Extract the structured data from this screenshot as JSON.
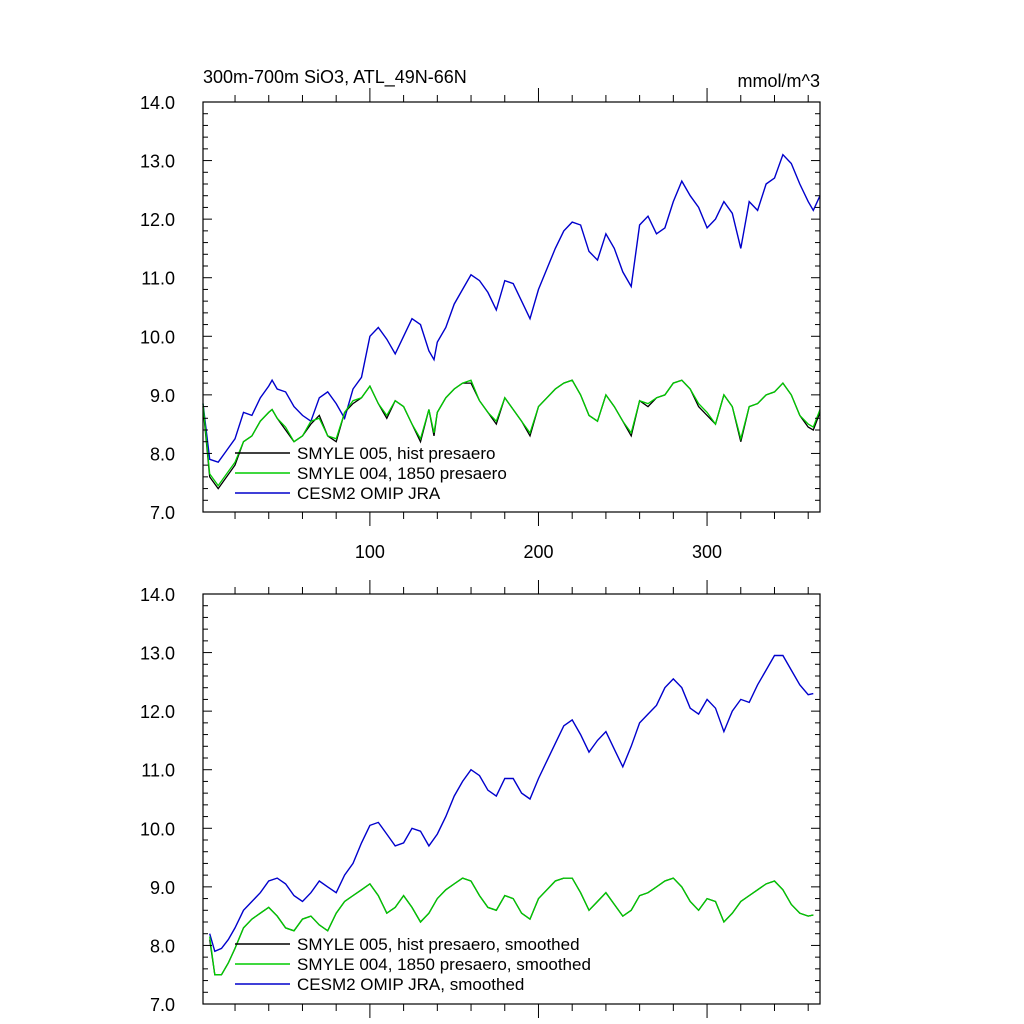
{
  "figure": {
    "title_left": "300m-700m SiO3, ATL_49N-66N",
    "title_right": "mmol/m^3"
  },
  "colors": {
    "smyle005": "#000000",
    "smyle004": "#00cc00",
    "omip": "#0000cc"
  },
  "chart_data": [
    {
      "type": "line",
      "title": "300m-700m SiO3, ATL_49N-66N",
      "units": "mmol/m^3",
      "xlim": [
        1,
        367
      ],
      "ylim": [
        7.0,
        14.0
      ],
      "xticks": [
        100,
        200,
        300
      ],
      "xtick_labels": [
        "100",
        "200",
        "300"
      ],
      "yticks": [
        7,
        8,
        9,
        10,
        11,
        12,
        13,
        14
      ],
      "ytick_labels": [
        "7.0",
        "8.0",
        "9.0",
        "10.0",
        "11.0",
        "12.0",
        "13.0",
        "14.0"
      ],
      "legend_position": "lower-left",
      "series": [
        {
          "name": "SMYLE 005, hist presaero",
          "color_key": "smyle005"
        },
        {
          "name": "SMYLE 004, 1850 presaero",
          "color_key": "smyle004"
        },
        {
          "name": "CESM2 OMIP JRA",
          "color_key": "omip"
        }
      ],
      "x": [
        1,
        5,
        10,
        15,
        20,
        25,
        30,
        35,
        40,
        42,
        45,
        50,
        55,
        60,
        65,
        70,
        75,
        80,
        85,
        90,
        95,
        100,
        105,
        110,
        115,
        120,
        125,
        130,
        135,
        138,
        140,
        145,
        150,
        155,
        160,
        165,
        170,
        175,
        180,
        185,
        190,
        195,
        200,
        205,
        210,
        215,
        220,
        225,
        230,
        235,
        240,
        245,
        250,
        255,
        260,
        265,
        270,
        275,
        280,
        285,
        290,
        295,
        300,
        305,
        310,
        315,
        320,
        325,
        330,
        335,
        340,
        345,
        350,
        355,
        360,
        363,
        367
      ],
      "values_omip": [
        8.85,
        7.9,
        7.85,
        8.05,
        8.25,
        8.7,
        8.65,
        8.95,
        9.15,
        9.25,
        9.1,
        9.05,
        8.8,
        8.65,
        8.55,
        8.95,
        9.05,
        8.85,
        8.6,
        9.1,
        9.3,
        10.0,
        10.15,
        9.95,
        9.7,
        10.0,
        10.3,
        10.2,
        9.75,
        9.6,
        9.9,
        10.15,
        10.55,
        10.8,
        11.05,
        10.95,
        10.75,
        10.45,
        10.95,
        10.9,
        10.6,
        10.3,
        10.8,
        11.15,
        11.5,
        11.8,
        11.95,
        11.9,
        11.45,
        11.3,
        11.75,
        11.5,
        11.1,
        10.85,
        11.9,
        12.05,
        11.75,
        11.85,
        12.3,
        12.65,
        12.4,
        12.2,
        11.85,
        12.0,
        12.3,
        12.1,
        11.5,
        12.3,
        12.15,
        12.6,
        12.7,
        13.1,
        12.95,
        12.6,
        12.3,
        12.15,
        12.4
      ],
      "values_smyle005": [
        8.8,
        7.6,
        7.4,
        7.6,
        7.8,
        8.2,
        8.3,
        8.55,
        8.7,
        8.75,
        8.6,
        8.4,
        8.2,
        8.3,
        8.5,
        8.65,
        8.3,
        8.2,
        8.7,
        8.85,
        8.95,
        9.15,
        8.85,
        8.6,
        8.9,
        8.8,
        8.5,
        8.2,
        8.75,
        8.3,
        8.7,
        8.95,
        9.1,
        9.2,
        9.2,
        8.9,
        8.7,
        8.5,
        8.95,
        8.75,
        8.55,
        8.3,
        8.8,
        8.95,
        9.1,
        9.2,
        9.25,
        9.0,
        8.65,
        8.55,
        9.0,
        8.8,
        8.55,
        8.3,
        8.9,
        8.8,
        8.95,
        9.0,
        9.2,
        9.25,
        9.1,
        8.8,
        8.65,
        8.5,
        9.0,
        8.8,
        8.2,
        8.8,
        8.85,
        9.0,
        9.05,
        9.2,
        9.0,
        8.65,
        8.45,
        8.4,
        8.7
      ],
      "values_smyle004": [
        8.85,
        7.65,
        7.45,
        7.65,
        7.85,
        8.2,
        8.3,
        8.55,
        8.7,
        8.75,
        8.6,
        8.45,
        8.2,
        8.3,
        8.55,
        8.6,
        8.3,
        8.25,
        8.7,
        8.9,
        8.95,
        9.15,
        8.85,
        8.65,
        8.9,
        8.8,
        8.5,
        8.25,
        8.75,
        8.35,
        8.7,
        8.95,
        9.1,
        9.2,
        9.25,
        8.9,
        8.7,
        8.55,
        8.95,
        8.75,
        8.55,
        8.35,
        8.8,
        8.95,
        9.1,
        9.2,
        9.25,
        9.0,
        8.65,
        8.55,
        9.0,
        8.8,
        8.55,
        8.35,
        8.9,
        8.85,
        8.95,
        9.0,
        9.2,
        9.25,
        9.1,
        8.85,
        8.7,
        8.5,
        9.0,
        8.8,
        8.25,
        8.8,
        8.85,
        9.0,
        9.05,
        9.2,
        9.0,
        8.65,
        8.5,
        8.45,
        8.75
      ]
    },
    {
      "type": "line",
      "xlim": [
        1,
        367
      ],
      "ylim": [
        7.0,
        14.0
      ],
      "xticks": [
        100,
        200,
        300
      ],
      "yticks": [
        7,
        8,
        9,
        10,
        11,
        12,
        13,
        14
      ],
      "ytick_labels": [
        "7.0",
        "8.0",
        "9.0",
        "10.0",
        "11.0",
        "12.0",
        "13.0",
        "14.0"
      ],
      "legend_position": "lower-left",
      "series": [
        {
          "name": "SMYLE 005, hist presaero, smoothed",
          "color_key": "smyle005"
        },
        {
          "name": "SMYLE 004, 1850 presaero, smoothed",
          "color_key": "smyle004"
        },
        {
          "name": "CESM2 OMIP JRA, smoothed",
          "color_key": "omip"
        }
      ],
      "x": [
        5,
        8,
        12,
        16,
        20,
        25,
        30,
        35,
        40,
        45,
        50,
        55,
        60,
        65,
        70,
        75,
        80,
        85,
        90,
        95,
        100,
        105,
        110,
        115,
        120,
        125,
        130,
        135,
        140,
        145,
        150,
        155,
        160,
        165,
        170,
        175,
        180,
        185,
        190,
        195,
        200,
        205,
        210,
        215,
        220,
        225,
        230,
        235,
        240,
        245,
        250,
        255,
        260,
        265,
        270,
        275,
        280,
        285,
        290,
        295,
        300,
        305,
        310,
        315,
        320,
        325,
        330,
        335,
        340,
        345,
        350,
        355,
        360,
        363
      ],
      "values_omip": [
        8.2,
        7.9,
        7.95,
        8.1,
        8.3,
        8.6,
        8.75,
        8.9,
        9.1,
        9.15,
        9.05,
        8.85,
        8.75,
        8.9,
        9.1,
        9.0,
        8.9,
        9.2,
        9.4,
        9.75,
        10.05,
        10.1,
        9.9,
        9.7,
        9.75,
        10.0,
        9.95,
        9.7,
        9.9,
        10.2,
        10.55,
        10.8,
        11.0,
        10.9,
        10.65,
        10.55,
        10.85,
        10.85,
        10.6,
        10.5,
        10.85,
        11.15,
        11.45,
        11.75,
        11.85,
        11.6,
        11.3,
        11.5,
        11.65,
        11.35,
        11.05,
        11.4,
        11.8,
        11.95,
        12.1,
        12.4,
        12.55,
        12.4,
        12.05,
        11.95,
        12.2,
        12.05,
        11.65,
        12.0,
        12.2,
        12.15,
        12.45,
        12.7,
        12.95,
        12.95,
        12.7,
        12.45,
        12.28,
        12.3
      ],
      "values_smyle005": [
        8.1,
        7.5,
        7.5,
        7.7,
        7.95,
        8.3,
        8.45,
        8.55,
        8.65,
        8.5,
        8.3,
        8.25,
        8.45,
        8.5,
        8.35,
        8.25,
        8.55,
        8.75,
        8.85,
        8.95,
        9.05,
        8.85,
        8.55,
        8.65,
        8.85,
        8.65,
        8.4,
        8.55,
        8.8,
        8.95,
        9.05,
        9.15,
        9.1,
        8.85,
        8.65,
        8.6,
        8.85,
        8.8,
        8.55,
        8.45,
        8.8,
        8.95,
        9.1,
        9.15,
        9.15,
        8.9,
        8.6,
        8.75,
        8.9,
        8.7,
        8.5,
        8.6,
        8.85,
        8.9,
        9.0,
        9.1,
        9.15,
        9.0,
        8.75,
        8.6,
        8.8,
        8.75,
        8.4,
        8.55,
        8.75,
        8.85,
        8.95,
        9.05,
        9.1,
        8.95,
        8.7,
        8.55,
        8.5,
        8.52
      ],
      "values_smyle004": [
        8.15,
        7.5,
        7.5,
        7.7,
        7.95,
        8.3,
        8.45,
        8.55,
        8.65,
        8.5,
        8.3,
        8.25,
        8.45,
        8.5,
        8.35,
        8.25,
        8.55,
        8.75,
        8.85,
        8.95,
        9.05,
        8.85,
        8.55,
        8.65,
        8.85,
        8.65,
        8.4,
        8.55,
        8.8,
        8.95,
        9.05,
        9.15,
        9.1,
        8.85,
        8.65,
        8.6,
        8.85,
        8.8,
        8.55,
        8.45,
        8.8,
        8.95,
        9.1,
        9.15,
        9.15,
        8.9,
        8.6,
        8.75,
        8.9,
        8.7,
        8.5,
        8.6,
        8.85,
        8.9,
        9.0,
        9.1,
        9.15,
        9.0,
        8.75,
        8.6,
        8.8,
        8.75,
        8.4,
        8.55,
        8.75,
        8.85,
        8.95,
        9.05,
        9.1,
        8.95,
        8.7,
        8.55,
        8.5,
        8.52
      ]
    }
  ]
}
